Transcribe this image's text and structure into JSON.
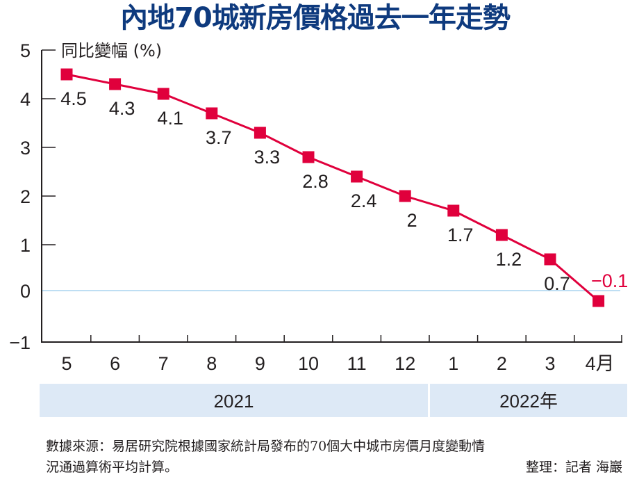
{
  "colors": {
    "title": "#0e3a7e",
    "series": "#e0003c",
    "axis": "#231f20",
    "zero_line": "#a9d3ef",
    "band": "#dde9f6"
  },
  "chart_data": {
    "type": "line",
    "title": "內地70城新房價格過去一年走勢",
    "ylabel": "同比變幅 (%)",
    "xlabel": "",
    "categories": [
      "5",
      "6",
      "7",
      "8",
      "9",
      "10",
      "11",
      "12",
      "1",
      "2",
      "3",
      "4月"
    ],
    "series": [
      {
        "name": "同比變幅",
        "values": [
          4.5,
          4.3,
          4.1,
          3.7,
          3.3,
          2.8,
          2.4,
          2,
          1.7,
          1.2,
          0.7,
          -0.1
        ],
        "labels": [
          "4.5",
          "4.3",
          "4.1",
          "3.7",
          "3.3",
          "2.8",
          "2.4",
          "2",
          "1.7",
          "1.2",
          "0.7",
          "−0.1"
        ]
      }
    ],
    "ylim": [
      -1,
      5
    ],
    "yticks": [
      "5",
      "4",
      "3",
      "2",
      "1",
      "0",
      "−1"
    ],
    "ytick_values": [
      5,
      4,
      3,
      2,
      1,
      0,
      -1
    ],
    "grid": false,
    "reference_line": 0,
    "marker": "square",
    "year_groups": [
      {
        "label": "2021",
        "months": 8
      },
      {
        "label": "2022年",
        "months": 4
      }
    ]
  },
  "source": {
    "line1": "數據來源：易居研究院根據國家統計局發布的70個大中城市房價月度變動情",
    "line2": "況通過算術平均計算。",
    "credit": "整理：記者 海巖"
  }
}
